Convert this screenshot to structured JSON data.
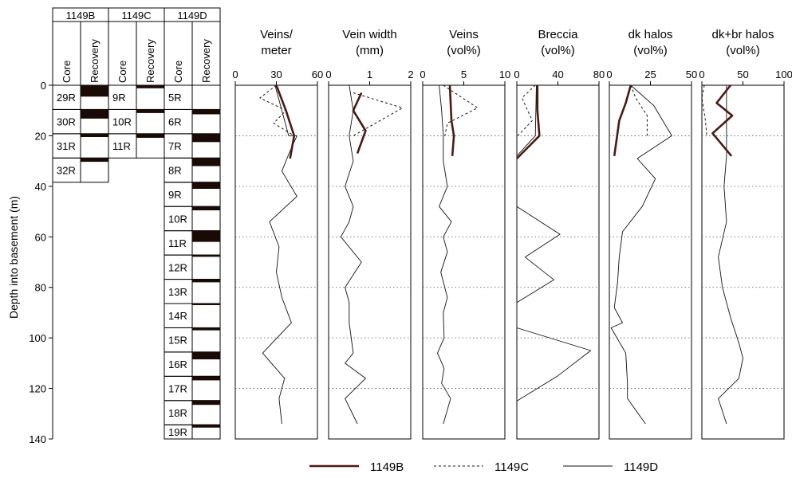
{
  "depth_axis": {
    "label": "Depth into basement (m)",
    "range": [
      0,
      140
    ],
    "ticks": [
      0,
      20,
      40,
      60,
      80,
      100,
      120,
      140
    ]
  },
  "core_columns": {
    "holes": [
      {
        "name": "1149B",
        "core_header": "Core",
        "recovery_header": "Recovery",
        "cores": [
          {
            "label": "29R",
            "top": 0,
            "bottom": 9.6
          },
          {
            "label": "30R",
            "top": 9.6,
            "bottom": 19.2
          },
          {
            "label": "31R",
            "top": 19.2,
            "bottom": 28.8
          },
          {
            "label": "32R",
            "top": 28.8,
            "bottom": 38.4
          }
        ],
        "recovered": [
          [
            0,
            4.5
          ],
          [
            9.6,
            13.2
          ],
          [
            19.2,
            20.5
          ],
          [
            28.8,
            30.3
          ]
        ]
      },
      {
        "name": "1149C",
        "core_header": "Core",
        "recovery_header": "Recovery",
        "cores": [
          {
            "label": "9R",
            "top": 0,
            "bottom": 9.6
          },
          {
            "label": "10R",
            "top": 9.6,
            "bottom": 19.2
          },
          {
            "label": "11R",
            "top": 19.2,
            "bottom": 28.8
          }
        ],
        "recovered": [
          [
            0,
            1.2
          ],
          [
            9.6,
            11.0
          ],
          [
            19.2,
            20.8
          ]
        ]
      },
      {
        "name": "1149D",
        "core_header": "Core",
        "recovery_header": "Recovery",
        "cores": [
          {
            "label": "5R",
            "top": 0,
            "bottom": 9.6
          },
          {
            "label": "6R",
            "top": 9.6,
            "bottom": 19.2
          },
          {
            "label": "7R",
            "top": 19.2,
            "bottom": 28.8
          },
          {
            "label": "8R",
            "top": 28.8,
            "bottom": 38.4
          },
          {
            "label": "9R",
            "top": 38.4,
            "bottom": 48.0
          },
          {
            "label": "10R",
            "top": 48.0,
            "bottom": 57.6
          },
          {
            "label": "11R",
            "top": 57.6,
            "bottom": 67.2
          },
          {
            "label": "12R",
            "top": 67.2,
            "bottom": 76.8
          },
          {
            "label": "13R",
            "top": 76.8,
            "bottom": 86.4
          },
          {
            "label": "14R",
            "top": 86.4,
            "bottom": 96.0
          },
          {
            "label": "15R",
            "top": 96.0,
            "bottom": 105.6
          },
          {
            "label": "16R",
            "top": 105.6,
            "bottom": 115.2
          },
          {
            "label": "17R",
            "top": 115.2,
            "bottom": 124.8
          },
          {
            "label": "18R",
            "top": 124.8,
            "bottom": 134.4
          },
          {
            "label": "19R",
            "top": 134.4,
            "bottom": 140.0
          }
        ],
        "recovered": [
          [
            9.6,
            11.5
          ],
          [
            19.2,
            22.5
          ],
          [
            28.8,
            32.0
          ],
          [
            38.4,
            41.0
          ],
          [
            48.0,
            49.5
          ],
          [
            57.6,
            62.0
          ],
          [
            67.2,
            67.9
          ],
          [
            76.8,
            78.0
          ],
          [
            86.4,
            86.9
          ],
          [
            96.0,
            97.0
          ],
          [
            105.6,
            108.5
          ],
          [
            115.2,
            116.8
          ],
          [
            124.8,
            126.5
          ],
          [
            134.4,
            135.5
          ]
        ]
      }
    ]
  },
  "chart_data": [
    {
      "type": "line",
      "title": "Veins/\nmeter",
      "xlim": [
        0,
        60
      ],
      "xticks": [
        0,
        30,
        60
      ],
      "ylim": [
        0,
        140
      ],
      "grid": "horizontal dotted",
      "series": [
        {
          "name": "1149B",
          "x": [
            30,
            37,
            43,
            40
          ],
          "y": [
            0,
            10,
            20,
            29
          ]
        },
        {
          "name": "1149C",
          "x": [
            30,
            18,
            37,
            28,
            43,
            40
          ],
          "y": [
            0,
            5,
            10,
            15,
            20,
            28
          ]
        },
        {
          "name": "1149D",
          "x": [
            29,
            34,
            39,
            45,
            40,
            34,
            45,
            25,
            32,
            30,
            34,
            41,
            20,
            36,
            32,
            34
          ],
          "y": [
            0,
            10,
            20,
            20,
            26,
            34,
            44,
            54,
            64,
            74,
            84,
            94,
            106,
            116,
            124,
            134
          ]
        }
      ]
    },
    {
      "type": "line",
      "title": "Vein width\n(mm)",
      "xlim": [
        0,
        2
      ],
      "xticks": [
        0,
        1,
        2
      ],
      "ylim": [
        0,
        140
      ],
      "grid": "horizontal dotted",
      "series": [
        {
          "name": "1149B",
          "x": [
            0.8,
            0.6,
            0.9,
            0.7
          ],
          "y": [
            3,
            10,
            18,
            27
          ]
        },
        {
          "name": "1149C",
          "x": [
            0.6,
            1.8,
            0.6
          ],
          "y": [
            3,
            9,
            20
          ]
        },
        {
          "name": "1149D",
          "x": [
            0.5,
            0.6,
            0.5,
            0.6,
            0.4,
            0.6,
            0.5,
            0.3,
            0.8,
            0.4,
            0.5,
            0.5,
            0.6,
            0.4,
            0.9,
            0.4,
            0.7
          ],
          "y": [
            0,
            10,
            20,
            30,
            40,
            48,
            54,
            60,
            70,
            80,
            86,
            94,
            106,
            110,
            116,
            124,
            134
          ]
        }
      ]
    },
    {
      "type": "line",
      "title": "Veins\n(vol%)",
      "xlim": [
        0,
        10
      ],
      "xticks": [
        0,
        5,
        10
      ],
      "ylim": [
        0,
        140
      ],
      "grid": "horizontal dotted",
      "series": [
        {
          "name": "1149B",
          "x": [
            3.3,
            3.5,
            3.8,
            3.6
          ],
          "y": [
            0,
            14,
            20,
            28
          ]
        },
        {
          "name": "1149C",
          "x": [
            2.5,
            6.7,
            3.0,
            2.7
          ],
          "y": [
            0,
            9,
            15,
            20
          ]
        },
        {
          "name": "1149D",
          "x": [
            2.0,
            2.3,
            2.5,
            2.5,
            3.0,
            2.0,
            3.5,
            2.5,
            3.0,
            2.2,
            3.0,
            2.5,
            2.6,
            1.8,
            2.6,
            2.3,
            3.4,
            2.5
          ],
          "y": [
            0,
            10,
            20,
            30,
            40,
            48,
            54,
            60,
            66,
            74,
            84,
            90,
            100,
            106,
            112,
            118,
            124,
            134
          ]
        }
      ]
    },
    {
      "type": "line",
      "title": "Breccia\n(vol%)",
      "xlim": [
        0,
        80
      ],
      "xticks": [
        0,
        40,
        80
      ],
      "ylim": [
        0,
        140
      ],
      "grid": "horizontal dotted",
      "series": [
        {
          "name": "1149B",
          "x": [
            20,
            20,
            22,
            0
          ],
          "y": [
            0,
            10,
            20,
            29
          ]
        },
        {
          "name": "1149C",
          "x": [
            18,
            5,
            15,
            1
          ],
          "y": [
            0,
            5,
            14,
            20
          ]
        },
        {
          "name": "1149D",
          "x": [
            19,
            18,
            0,
            0,
            42,
            8,
            36,
            0,
            0,
            72,
            40,
            0
          ],
          "y": [
            0,
            20,
            28,
            48,
            59,
            68,
            77,
            86,
            96,
            105,
            115,
            125
          ]
        }
      ]
    },
    {
      "type": "line",
      "title": "dk halos\n(vol%)",
      "xlim": [
        0,
        50
      ],
      "xticks": [
        0,
        25,
        50
      ],
      "ylim": [
        0,
        140
      ],
      "grid": "horizontal dotted",
      "series": [
        {
          "name": "1149B",
          "x": [
            13,
            10,
            6,
            3
          ],
          "y": [
            0,
            7,
            14,
            28
          ]
        },
        {
          "name": "1149C",
          "x": [
            13,
            16,
            23,
            23
          ],
          "y": [
            0,
            5,
            12,
            20
          ]
        },
        {
          "name": "1149D",
          "x": [
            13,
            27,
            38,
            17,
            28,
            20,
            8,
            6,
            5,
            3,
            8,
            1,
            10,
            11,
            11,
            22
          ],
          "y": [
            0,
            8,
            20,
            29,
            37,
            48,
            58,
            68,
            78,
            88,
            94,
            96,
            106,
            118,
            124,
            134
          ]
        }
      ]
    },
    {
      "type": "line",
      "title": "dk+br halos\n(vol%)",
      "xlim": [
        0,
        100
      ],
      "xticks": [
        0,
        50,
        100
      ],
      "ylim": [
        0,
        140
      ],
      "grid": "horizontal dotted",
      "series": [
        {
          "name": "1149B",
          "x": [
            35,
            18,
            37,
            13,
            36
          ],
          "y": [
            0,
            7,
            12,
            19,
            28
          ]
        },
        {
          "name": "1149C",
          "x": [
            3,
            0,
            4,
            6
          ],
          "y": [
            0,
            5,
            13,
            20
          ]
        },
        {
          "name": "1149D",
          "x": [
            30,
            30,
            30,
            27,
            30,
            20,
            25,
            35,
            45,
            50,
            45,
            20,
            30
          ],
          "y": [
            0,
            18,
            28,
            40,
            54,
            68,
            80,
            92,
            102,
            108,
            116,
            124,
            134
          ]
        }
      ]
    }
  ],
  "legend": {
    "position": "bottom-center",
    "items": [
      {
        "name": "1149B",
        "style": "thick"
      },
      {
        "name": "1149C",
        "style": "dashed"
      },
      {
        "name": "1149D",
        "style": "thin"
      }
    ]
  },
  "colors": {
    "1149B": "#4a1a12",
    "1149C": "#111111",
    "1149D": "#111111",
    "recovery_fill": "#1a0a06"
  }
}
